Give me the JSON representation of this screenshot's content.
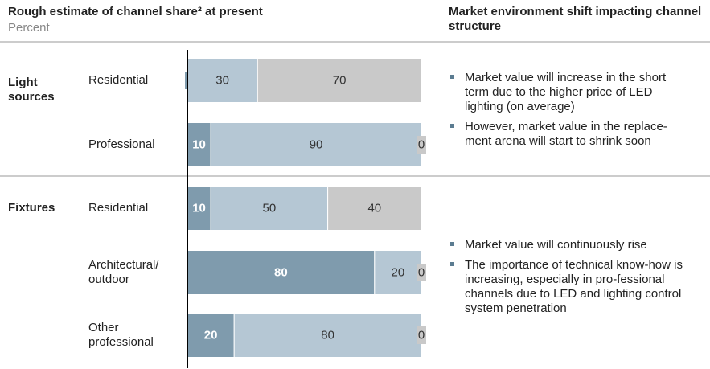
{
  "chart_data": {
    "type": "stacked_bar_h",
    "title": "Rough estimate of channel share² at present",
    "subtitle": "Percent",
    "right_title": "Market environment shift impacting channel structure",
    "xlim": [
      0,
      100
    ],
    "groups": [
      {
        "name": "Light\nsources",
        "categories": [
          "Residential",
          "Professional"
        ],
        "bullets": [
          "Market value will increase in the short term due to the higher price of LED lighting (on average)",
          "However, market value in the replace-ment arena will start to shrink soon"
        ]
      },
      {
        "name": "Fixtures",
        "categories": [
          "Residential",
          "Architectural/\noutdoor",
          "Other\nprofessional"
        ],
        "bullets": [
          "Market value will continuously rise",
          "The importance of technical know-how is increasing, especially in pro-fessional channels due to LED and lighting control system penetration"
        ]
      }
    ],
    "series": [
      {
        "color": "#7f9bad",
        "label_color": "#ffffff",
        "values": [
          0,
          10,
          10,
          80,
          20
        ]
      },
      {
        "color": "#b5c7d4",
        "label_color": "#333333",
        "values": [
          30,
          90,
          50,
          20,
          80
        ]
      },
      {
        "color": "#c9c9c9",
        "label_color": "#333333",
        "values": [
          70,
          0,
          40,
          0,
          0
        ]
      }
    ]
  }
}
